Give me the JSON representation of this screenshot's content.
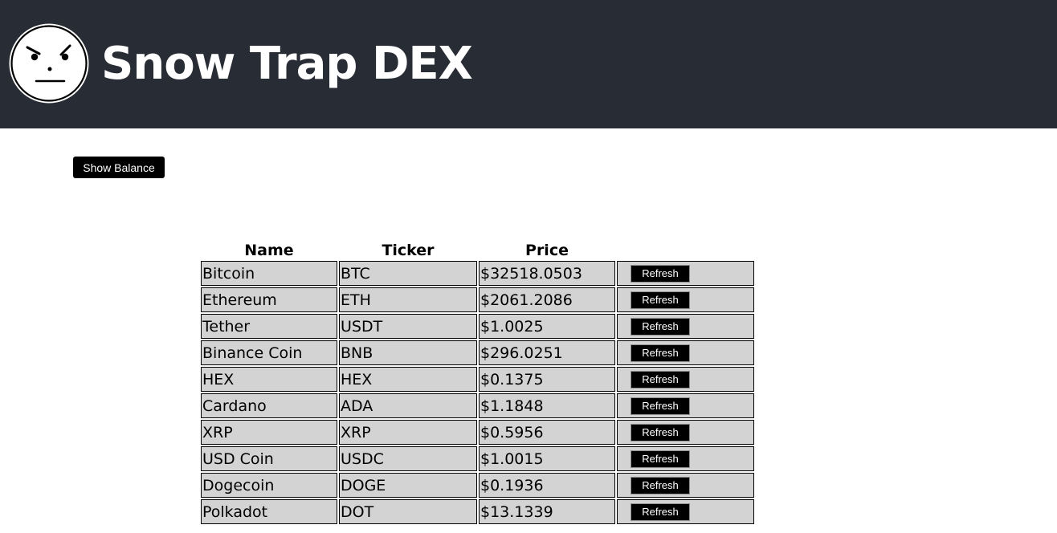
{
  "header": {
    "title": "Snow Trap DEX",
    "logo_icon": "grumpy-face-icon",
    "background": "#282c34"
  },
  "actions": {
    "show_balance_label": "Show Balance"
  },
  "table": {
    "columns": [
      "Name",
      "Ticker",
      "Price",
      ""
    ],
    "refresh_label": "Refresh",
    "rows": [
      {
        "name": "Bitcoin",
        "ticker": "BTC",
        "price": "$32518.0503"
      },
      {
        "name": "Ethereum",
        "ticker": "ETH",
        "price": "$2061.2086"
      },
      {
        "name": "Tether",
        "ticker": "USDT",
        "price": "$1.0025"
      },
      {
        "name": "Binance Coin",
        "ticker": "BNB",
        "price": "$296.0251"
      },
      {
        "name": "HEX",
        "ticker": "HEX",
        "price": "$0.1375"
      },
      {
        "name": "Cardano",
        "ticker": "ADA",
        "price": "$1.1848"
      },
      {
        "name": "XRP",
        "ticker": "XRP",
        "price": "$0.5956"
      },
      {
        "name": "USD Coin",
        "ticker": "USDC",
        "price": "$1.0015"
      },
      {
        "name": "Dogecoin",
        "ticker": "DOGE",
        "price": "$0.1936"
      },
      {
        "name": "Polkadot",
        "ticker": "DOT",
        "price": "$13.1339"
      }
    ]
  }
}
